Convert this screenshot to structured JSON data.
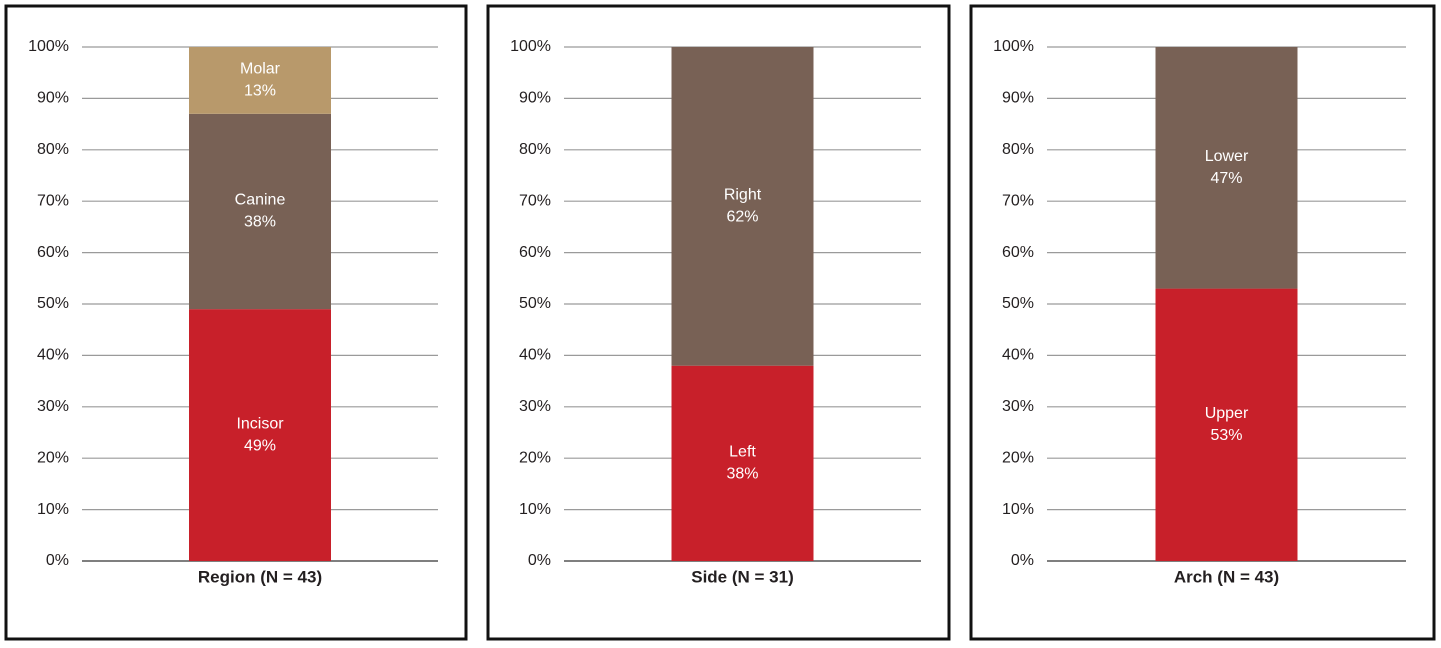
{
  "chart_data": [
    {
      "type": "bar",
      "stacked": true,
      "categories": [
        "Region (N = 43)"
      ],
      "series": [
        {
          "name": "Incisor",
          "color": "#c8202a",
          "values": [
            49
          ],
          "value_labels": [
            "49%"
          ]
        },
        {
          "name": "Canine",
          "color": "#786155",
          "values": [
            38
          ],
          "value_labels": [
            "38%"
          ]
        },
        {
          "name": "Molar",
          "color": "#b8996b",
          "values": [
            13
          ],
          "value_labels": [
            "13%"
          ]
        }
      ],
      "ylim": [
        0,
        100
      ],
      "yticks": [
        {
          "value": 0,
          "label": "0%"
        },
        {
          "value": 10,
          "label": "10%"
        },
        {
          "value": 20,
          "label": "20%"
        },
        {
          "value": 30,
          "label": "30%"
        },
        {
          "value": 40,
          "label": "40%"
        },
        {
          "value": 50,
          "label": "50%"
        },
        {
          "value": 60,
          "label": "60%"
        },
        {
          "value": 70,
          "label": "70%"
        },
        {
          "value": 80,
          "label": "80%"
        },
        {
          "value": 90,
          "label": "90%"
        },
        {
          "value": 100,
          "label": "100%"
        }
      ],
      "grid": true
    },
    {
      "type": "bar",
      "stacked": true,
      "categories": [
        "Side (N = 31)"
      ],
      "series": [
        {
          "name": "Left",
          "color": "#c8202a",
          "values": [
            38
          ],
          "value_labels": [
            "38%"
          ]
        },
        {
          "name": "Right",
          "color": "#786155",
          "values": [
            62
          ],
          "value_labels": [
            "62%"
          ]
        }
      ],
      "ylim": [
        0,
        100
      ],
      "yticks": [
        {
          "value": 0,
          "label": "0%"
        },
        {
          "value": 10,
          "label": "10%"
        },
        {
          "value": 20,
          "label": "20%"
        },
        {
          "value": 30,
          "label": "30%"
        },
        {
          "value": 40,
          "label": "40%"
        },
        {
          "value": 50,
          "label": "50%"
        },
        {
          "value": 60,
          "label": "60%"
        },
        {
          "value": 70,
          "label": "70%"
        },
        {
          "value": 80,
          "label": "80%"
        },
        {
          "value": 90,
          "label": "90%"
        },
        {
          "value": 100,
          "label": "100%"
        }
      ],
      "grid": true
    },
    {
      "type": "bar",
      "stacked": true,
      "categories": [
        "Arch (N = 43)"
      ],
      "series": [
        {
          "name": "Upper",
          "color": "#c8202a",
          "values": [
            53
          ],
          "value_labels": [
            "53%"
          ]
        },
        {
          "name": "Lower",
          "color": "#786155",
          "values": [
            47
          ],
          "value_labels": [
            "47%"
          ]
        }
      ],
      "ylim": [
        0,
        100
      ],
      "yticks": [
        {
          "value": 0,
          "label": "0%"
        },
        {
          "value": 10,
          "label": "10%"
        },
        {
          "value": 20,
          "label": "20%"
        },
        {
          "value": 30,
          "label": "30%"
        },
        {
          "value": 40,
          "label": "40%"
        },
        {
          "value": 50,
          "label": "50%"
        },
        {
          "value": 60,
          "label": "60%"
        },
        {
          "value": 70,
          "label": "70%"
        },
        {
          "value": 80,
          "label": "80%"
        },
        {
          "value": 90,
          "label": "90%"
        },
        {
          "value": 100,
          "label": "100%"
        }
      ],
      "grid": true
    }
  ]
}
